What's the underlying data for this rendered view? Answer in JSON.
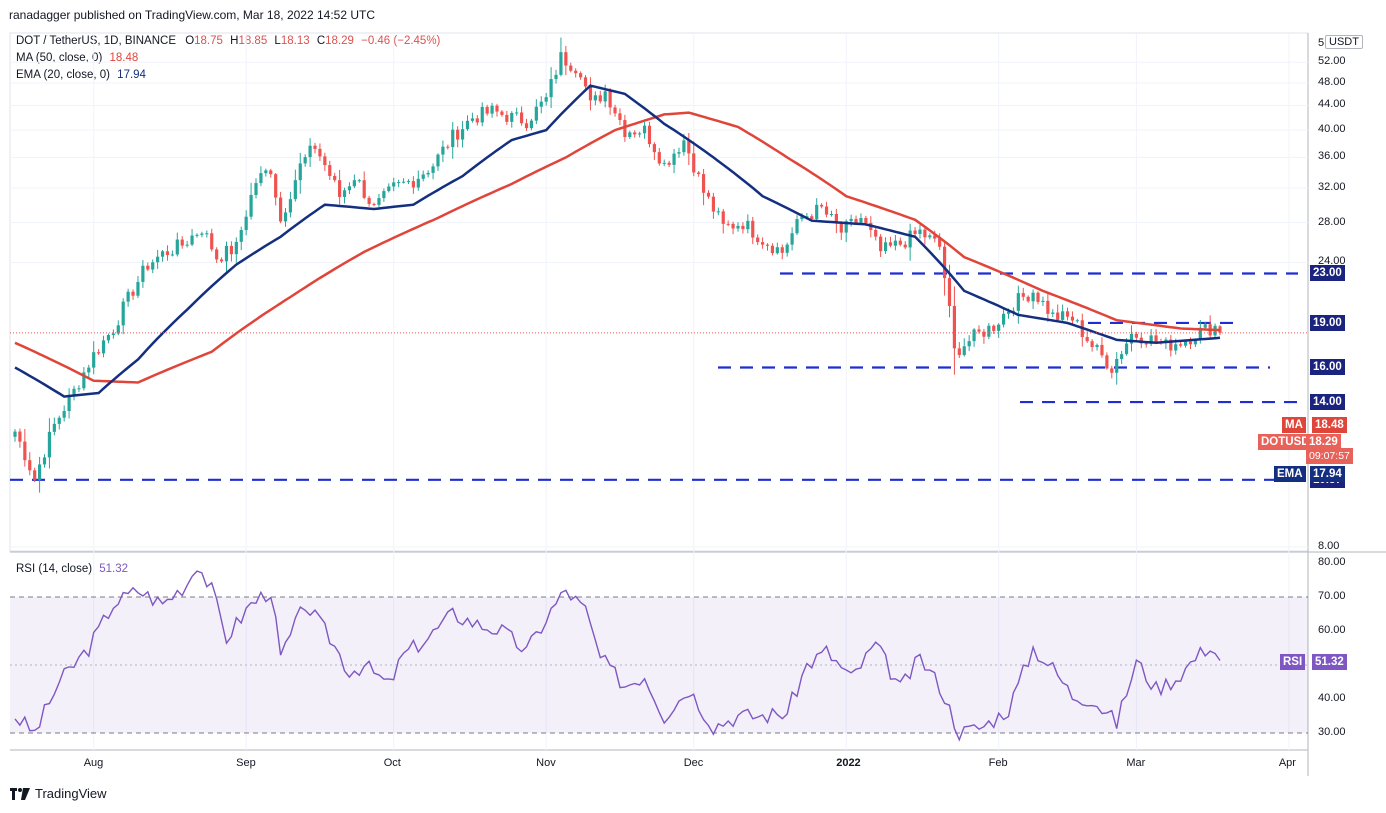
{
  "header": {
    "publisher": "ranadagger published on TradingView.com, Mar 18, 2022 14:52 UTC",
    "symbol_line": "DOT / TetherUS, 1D, BINANCE",
    "ohlc": {
      "o_label": "O",
      "o": "18.75",
      "h_label": "H",
      "h": "18.85",
      "l_label": "L",
      "l": "18.13",
      "c_label": "C",
      "c": "18.29",
      "chg": "−0.46 (−2.45%)"
    },
    "ma_label": "MA (50, close, 0)",
    "ma_value": "18.48",
    "ema_label": "EMA (20, close, 0)",
    "ema_value": "17.94"
  },
  "price_axis": {
    "currency": "USDT",
    "top_tick": "5",
    "ticks": [
      "52.00",
      "48.00",
      "44.00",
      "40.00",
      "36.00",
      "32.00",
      "28.00",
      "24.00",
      "8.00"
    ],
    "levels": [
      {
        "label": "23.00",
        "value": 23.0
      },
      {
        "label": "19.00",
        "value": 19.0
      },
      {
        "label": "16.00",
        "value": 16.0
      },
      {
        "label": "14.00",
        "value": 14.0
      },
      {
        "label": "10.37",
        "value": 10.37
      }
    ],
    "ma_tag": "MA",
    "ma_tag_value": "18.48",
    "price_tag": "DOTUSDT",
    "price_tag_value": "18.29",
    "countdown": "09:07:57",
    "ema_tag": "EMA",
    "ema_tag_value": "17.94"
  },
  "time_axis": [
    "Aug",
    "Sep",
    "Oct",
    "Nov",
    "Dec",
    "2022",
    "Feb",
    "Mar",
    "Apr"
  ],
  "rsi": {
    "label": "RSI (14, close)",
    "value": "51.32",
    "tag": "RSI",
    "ticks": [
      "80.00",
      "70.00",
      "60.00",
      "50.00",
      "40.00",
      "30.00"
    ],
    "upper": 70,
    "lower": 30
  },
  "footer": {
    "brand": "TradingView"
  },
  "colors": {
    "up": "#26a69a",
    "down": "#ef5350",
    "ma": "#e0453a",
    "ema": "#152f80",
    "level": "#1f2ed3",
    "rsi": "#7e57c2"
  },
  "chart_data": {
    "type": "candlestick",
    "title": "DOT / TetherUS, 1D, BINANCE",
    "x_start": "2021-07-16",
    "x_end": "2022-03-18",
    "y_scale": "log",
    "price_range": [
      8,
      56
    ],
    "anchors_close": [
      [
        "2021-07-16",
        12.5
      ],
      [
        "2021-07-20",
        10.4
      ],
      [
        "2021-07-24",
        12.8
      ],
      [
        "2021-07-28",
        14.6
      ],
      [
        "2021-08-01",
        16.8
      ],
      [
        "2021-08-05",
        18.6
      ],
      [
        "2021-08-09",
        21.6
      ],
      [
        "2021-08-12",
        23.8
      ],
      [
        "2021-08-15",
        24.8
      ],
      [
        "2021-08-19",
        25.7
      ],
      [
        "2021-08-23",
        27.4
      ],
      [
        "2021-08-26",
        24.5
      ],
      [
        "2021-08-30",
        25.4
      ],
      [
        "2021-09-03",
        32.8
      ],
      [
        "2021-09-06",
        34.5
      ],
      [
        "2021-09-08",
        28.2
      ],
      [
        "2021-09-12",
        34.8
      ],
      [
        "2021-09-15",
        37.6
      ],
      [
        "2021-09-20",
        31.0
      ],
      [
        "2021-09-23",
        33.5
      ],
      [
        "2021-09-27",
        29.5
      ],
      [
        "2021-10-01",
        32.0
      ],
      [
        "2021-10-05",
        33.0
      ],
      [
        "2021-10-09",
        35.0
      ],
      [
        "2021-10-13",
        39.0
      ],
      [
        "2021-10-17",
        42.0
      ],
      [
        "2021-10-21",
        43.0
      ],
      [
        "2021-10-25",
        42.0
      ],
      [
        "2021-10-28",
        41.5
      ],
      [
        "2021-11-01",
        45.0
      ],
      [
        "2021-11-04",
        53.0
      ],
      [
        "2021-11-08",
        50.5
      ],
      [
        "2021-11-10",
        44.0
      ],
      [
        "2021-11-13",
        46.5
      ],
      [
        "2021-11-17",
        40.0
      ],
      [
        "2021-11-21",
        40.0
      ],
      [
        "2021-11-25",
        35.0
      ],
      [
        "2021-11-29",
        38.5
      ],
      [
        "2021-12-03",
        31.5
      ],
      [
        "2021-12-07",
        27.5
      ],
      [
        "2021-12-11",
        28.0
      ],
      [
        "2021-12-15",
        26.2
      ],
      [
        "2021-12-19",
        25.0
      ],
      [
        "2021-12-23",
        28.6
      ],
      [
        "2021-12-27",
        29.5
      ],
      [
        "2021-12-31",
        27.0
      ],
      [
        "2022-01-04",
        28.5
      ],
      [
        "2022-01-08",
        25.0
      ],
      [
        "2022-01-12",
        25.8
      ],
      [
        "2022-01-16",
        27.0
      ],
      [
        "2022-01-20",
        25.5
      ],
      [
        "2022-01-23",
        17.0
      ],
      [
        "2022-01-27",
        18.0
      ],
      [
        "2022-01-31",
        18.8
      ],
      [
        "2022-02-04",
        20.5
      ],
      [
        "2022-02-08",
        21.5
      ],
      [
        "2022-02-12",
        19.5
      ],
      [
        "2022-02-16",
        19.3
      ],
      [
        "2022-02-20",
        17.4
      ],
      [
        "2022-02-24",
        16.0
      ],
      [
        "2022-02-28",
        18.2
      ],
      [
        "2022-03-03",
        18.0
      ],
      [
        "2022-03-07",
        17.4
      ],
      [
        "2022-03-11",
        17.8
      ],
      [
        "2022-03-14",
        18.4
      ],
      [
        "2022-03-17",
        18.75
      ],
      [
        "2022-03-18",
        18.29
      ]
    ],
    "ma50_anchors": [
      [
        "2021-07-16",
        17.6
      ],
      [
        "2021-08-01",
        15.2
      ],
      [
        "2021-08-10",
        15.1
      ],
      [
        "2021-08-25",
        17.0
      ],
      [
        "2021-09-10",
        21.0
      ],
      [
        "2021-09-25",
        25.0
      ],
      [
        "2021-10-10",
        28.5
      ],
      [
        "2021-10-25",
        32.5
      ],
      [
        "2021-11-05",
        36.0
      ],
      [
        "2021-11-15",
        40.0
      ],
      [
        "2021-11-25",
        42.5
      ],
      [
        "2021-11-30",
        42.8
      ],
      [
        "2021-12-10",
        40.5
      ],
      [
        "2021-12-20",
        36.0
      ],
      [
        "2022-01-01",
        31.0
      ],
      [
        "2022-01-15",
        28.3
      ],
      [
        "2022-01-25",
        24.5
      ],
      [
        "2022-02-10",
        21.5
      ],
      [
        "2022-02-25",
        19.2
      ],
      [
        "2022-03-10",
        18.6
      ],
      [
        "2022-03-18",
        18.48
      ]
    ],
    "ema20_anchors": [
      [
        "2021-07-16",
        16.0
      ],
      [
        "2021-07-26",
        14.3
      ],
      [
        "2021-08-02",
        14.5
      ],
      [
        "2021-08-10",
        16.5
      ],
      [
        "2021-08-20",
        20.0
      ],
      [
        "2021-08-30",
        23.8
      ],
      [
        "2021-09-08",
        26.5
      ],
      [
        "2021-09-17",
        30.0
      ],
      [
        "2021-09-27",
        29.5
      ],
      [
        "2021-10-05",
        30.0
      ],
      [
        "2021-10-15",
        33.5
      ],
      [
        "2021-10-25",
        38.5
      ],
      [
        "2021-11-01",
        40.0
      ],
      [
        "2021-11-10",
        47.5
      ],
      [
        "2021-11-17",
        46.0
      ],
      [
        "2021-11-25",
        41.0
      ],
      [
        "2021-12-05",
        36.0
      ],
      [
        "2021-12-15",
        31.0
      ],
      [
        "2021-12-25",
        28.2
      ],
      [
        "2022-01-05",
        27.8
      ],
      [
        "2022-01-15",
        26.5
      ],
      [
        "2022-01-25",
        21.5
      ],
      [
        "2022-02-05",
        19.6
      ],
      [
        "2022-02-15",
        19.0
      ],
      [
        "2022-02-25",
        17.8
      ],
      [
        "2022-03-05",
        17.6
      ],
      [
        "2022-03-18",
        17.94
      ]
    ],
    "rsi_anchors": [
      [
        "2021-07-16",
        35
      ],
      [
        "2021-07-20",
        30
      ],
      [
        "2021-07-25",
        45
      ],
      [
        "2021-07-31",
        55
      ],
      [
        "2021-08-05",
        68
      ],
      [
        "2021-08-10",
        72
      ],
      [
        "2021-08-15",
        68
      ],
      [
        "2021-08-20",
        74
      ],
      [
        "2021-08-22",
        80
      ],
      [
        "2021-08-25",
        72
      ],
      [
        "2021-08-28",
        58
      ],
      [
        "2021-09-02",
        68
      ],
      [
        "2021-09-06",
        72
      ],
      [
        "2021-09-08",
        52
      ],
      [
        "2021-09-13",
        68
      ],
      [
        "2021-09-18",
        58
      ],
      [
        "2021-09-22",
        48
      ],
      [
        "2021-09-25",
        50
      ],
      [
        "2021-09-30",
        44
      ],
      [
        "2021-10-03",
        53
      ],
      [
        "2021-10-08",
        58
      ],
      [
        "2021-10-13",
        65
      ],
      [
        "2021-10-18",
        62
      ],
      [
        "2021-10-23",
        60
      ],
      [
        "2021-10-28",
        54
      ],
      [
        "2021-11-02",
        66
      ],
      [
        "2021-11-05",
        72
      ],
      [
        "2021-11-09",
        66
      ],
      [
        "2021-11-12",
        52
      ],
      [
        "2021-11-17",
        44
      ],
      [
        "2021-11-21",
        47
      ],
      [
        "2021-11-25",
        35
      ],
      [
        "2021-11-30",
        43
      ],
      [
        "2021-12-05",
        32
      ],
      [
        "2021-12-10",
        35
      ],
      [
        "2021-12-15",
        35
      ],
      [
        "2021-12-20",
        36
      ],
      [
        "2021-12-24",
        50
      ],
      [
        "2021-12-28",
        54
      ],
      [
        "2022-01-02",
        46
      ],
      [
        "2022-01-07",
        56
      ],
      [
        "2022-01-12",
        43
      ],
      [
        "2022-01-16",
        52
      ],
      [
        "2022-01-20",
        44
      ],
      [
        "2022-01-24",
        30
      ],
      [
        "2022-01-29",
        32
      ],
      [
        "2022-02-03",
        37
      ],
      [
        "2022-02-08",
        55
      ],
      [
        "2022-02-12",
        49
      ],
      [
        "2022-02-16",
        41
      ],
      [
        "2022-02-20",
        40
      ],
      [
        "2022-02-25",
        33
      ],
      [
        "2022-03-01",
        51
      ],
      [
        "2022-03-05",
        43
      ],
      [
        "2022-03-09",
        46
      ],
      [
        "2022-03-13",
        52
      ],
      [
        "2022-03-16",
        56
      ],
      [
        "2022-03-18",
        51.32
      ]
    ]
  }
}
